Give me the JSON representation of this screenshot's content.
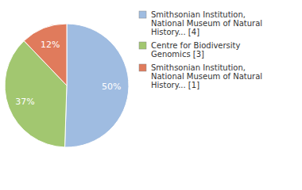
{
  "chart_data": {
    "type": "pie",
    "categories": [
      "Smithsonian Institution, National Museum of Natural History... [4]",
      "Centre for Biodiversity Genomics [3]",
      "Smithsonian Institution, National Museum of Natural History... [1]"
    ],
    "values": [
      50,
      37,
      12
    ],
    "value_labels": [
      "50%",
      "37%",
      "12%"
    ],
    "colors": [
      "#9fbce1",
      "#a2c770",
      "#e07b5c"
    ],
    "data_labels": true,
    "legend": "top-right"
  }
}
